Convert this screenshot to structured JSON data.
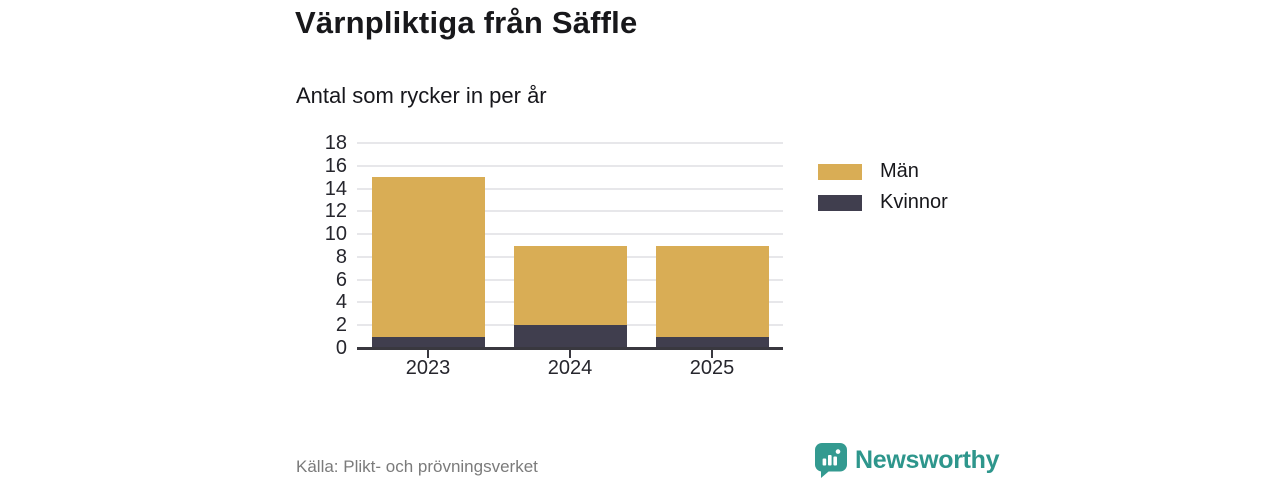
{
  "chart_data": {
    "type": "bar",
    "stacked": true,
    "title": "Värnpliktiga från Säffle",
    "subtitle": "Antal som rycker in per år",
    "categories": [
      "2023",
      "2024",
      "2025"
    ],
    "series": [
      {
        "name": "Kvinnor",
        "color": "#403e4e",
        "values": [
          1,
          2,
          1
        ]
      },
      {
        "name": "Män",
        "color": "#d9ad55",
        "values": [
          14,
          7,
          8
        ]
      }
    ],
    "totals": [
      15,
      9,
      9
    ],
    "ylim": [
      0,
      18
    ],
    "yticks": [
      0,
      2,
      4,
      6,
      8,
      10,
      12,
      14,
      16,
      18
    ],
    "xlabel": "",
    "ylabel": "",
    "grid": "horizontal",
    "legend_position": "right",
    "legend": [
      {
        "label": "Män",
        "color": "#d9ad55"
      },
      {
        "label": "Kvinnor",
        "color": "#403e4e"
      }
    ]
  },
  "footer": {
    "source": "Källa: Plikt- och prövningsverket",
    "brand": "Newsworthy"
  },
  "icons": {
    "brand_icon": "speech-bubble-bar-chart-icon"
  },
  "colors": {
    "bar_men_gold": "#d9ad55",
    "bar_women_dark": "#403e4e",
    "brand_teal": "#339a90",
    "brand_text_teal": "#2e968c",
    "axis": "#39383f",
    "gridline": "#e7e7ea",
    "text_dark": "#18181b",
    "text_muted": "#7b7b7b"
  }
}
